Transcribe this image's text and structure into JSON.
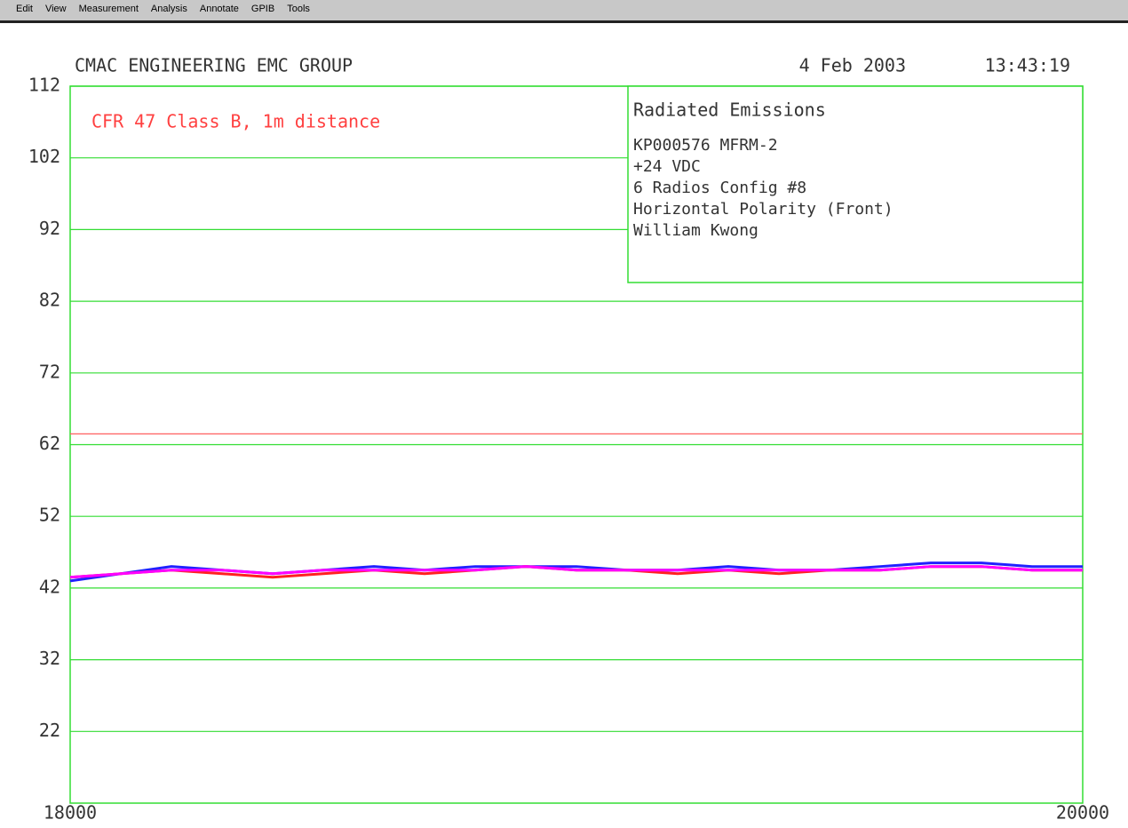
{
  "menu": [
    "Edit",
    "View",
    "Measurement",
    "Analysis",
    "Annotate",
    "GPIB",
    "Tools"
  ],
  "chart_data": {
    "type": "line",
    "title": "CMAC ENGINEERING EMC GROUP",
    "date": "4 Feb 2003",
    "time": "13:43:19",
    "annotation": "CFR 47 Class B, 1m distance",
    "info_title": "Radiated Emissions",
    "info_lines": [
      "KP000576 MFRM-2",
      "+24 VDC",
      "6 Radios Config #8",
      "Horizontal Polarity (Front)",
      "William Kwong"
    ],
    "x": [
      18000,
      18100,
      18200,
      18300,
      18400,
      18500,
      18600,
      18700,
      18800,
      18900,
      19000,
      19100,
      19200,
      19300,
      19400,
      19500,
      19600,
      19700,
      19800,
      19900,
      20000
    ],
    "series": [
      {
        "name": "blue",
        "color": "#2020ff",
        "values": [
          43,
          44,
          45,
          44.5,
          44,
          44.5,
          45,
          44.5,
          45,
          45,
          45,
          44.5,
          44.5,
          45,
          44.5,
          44.5,
          45,
          45.5,
          45.5,
          45,
          45
        ]
      },
      {
        "name": "red",
        "color": "#ff2020",
        "values": [
          43.5,
          44,
          44.5,
          44,
          43.5,
          44,
          44.5,
          44,
          44.5,
          45,
          44.5,
          44.5,
          44,
          44.5,
          44,
          44.5,
          44.5,
          45,
          45,
          44.5,
          44.5
        ]
      },
      {
        "name": "magenta",
        "color": "#ff00ff",
        "values": [
          43.5,
          44,
          44.5,
          44.5,
          44,
          44.5,
          44.5,
          44.5,
          44.5,
          45,
          44.5,
          44.5,
          44.5,
          44.5,
          44.5,
          44.5,
          44.5,
          45,
          45,
          44.5,
          44.5
        ]
      }
    ],
    "limit_line": {
      "value": 63.5,
      "color": "#ff6060"
    },
    "xlim": [
      18000,
      20000
    ],
    "xticks": [
      18000,
      20000
    ],
    "ylim": [
      12,
      112
    ],
    "yticks": [
      112,
      102,
      92,
      82,
      72,
      62,
      52,
      42,
      32,
      22
    ],
    "grid": true,
    "grid_color": "#33dd33"
  }
}
